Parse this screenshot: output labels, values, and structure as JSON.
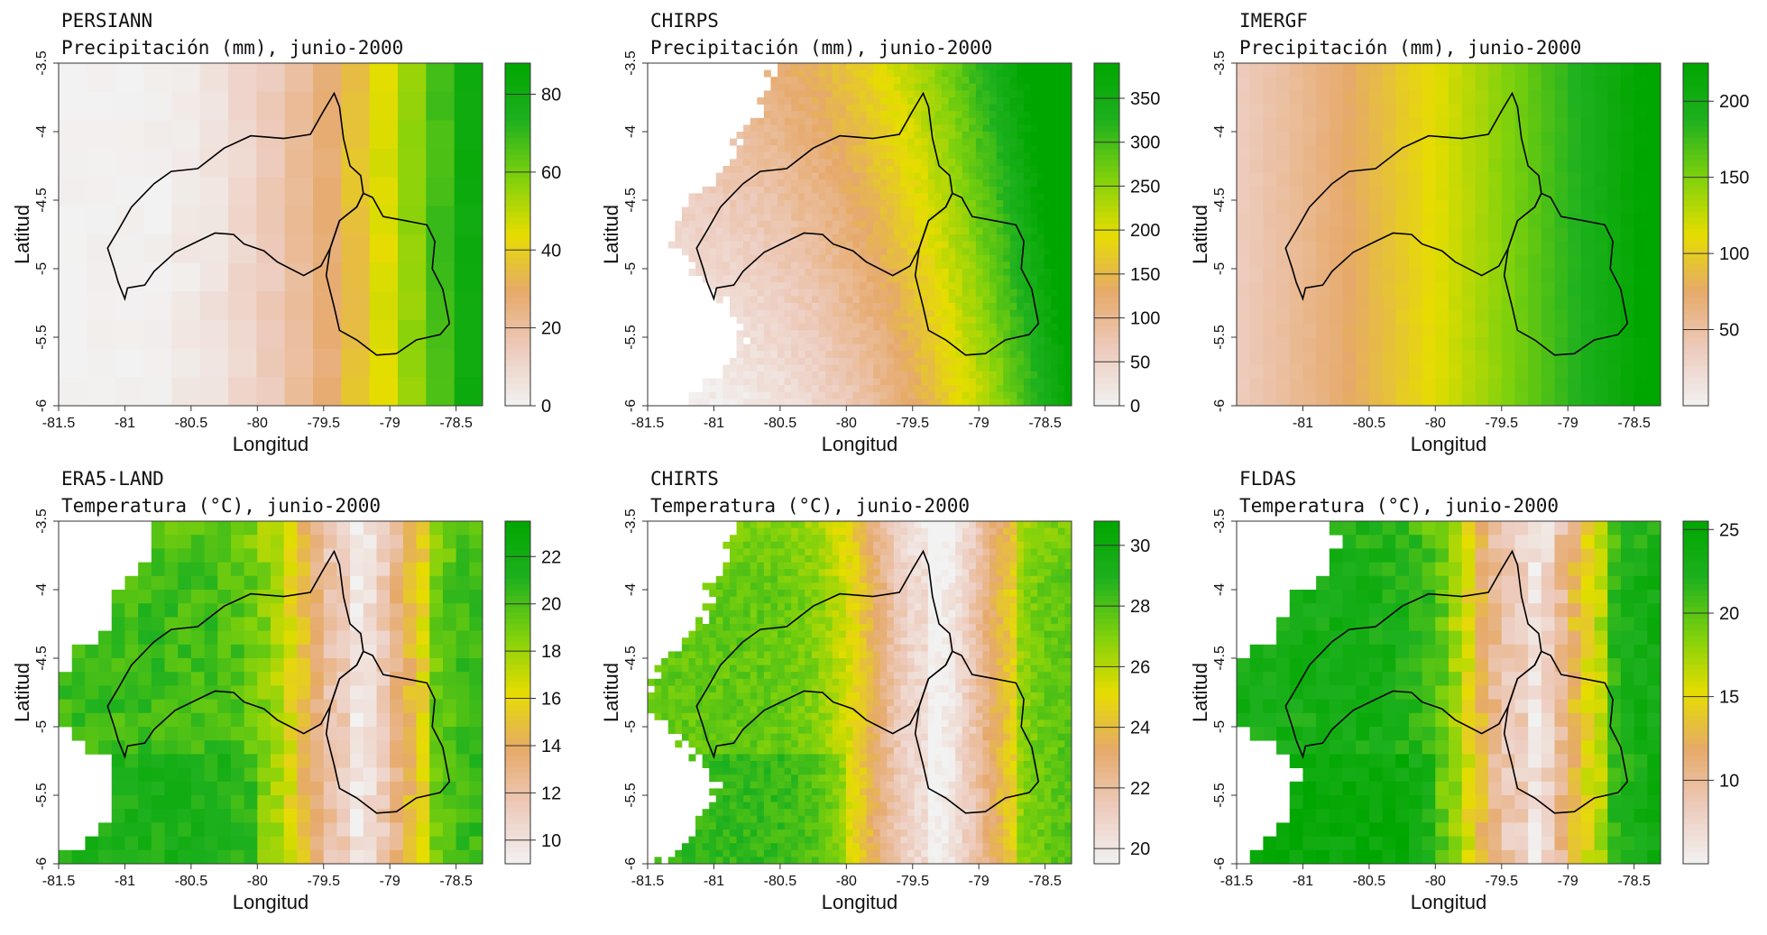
{
  "figure": {
    "colors": {
      "ramp": [
        "#f2f2f2",
        "#edcbbd",
        "#e6a96a",
        "#e6dd00",
        "#7fd10c",
        "#1fb11f",
        "#00a600"
      ],
      "basin_outline": "#000000",
      "no_data": "#ffffff"
    }
  },
  "chart_data": [
    {
      "type": "heatmap",
      "dataset": "PERSIANN",
      "title": "Precipitación (mm), junio-2000",
      "xlabel": "Longitud",
      "ylabel": "Latitud",
      "xlim": [
        -81.5,
        -78.3
      ],
      "ylim": [
        -6.0,
        -3.5
      ],
      "xticks": [
        "-81.5",
        "-81",
        "-80.5",
        "-80",
        "-79.5",
        "-79",
        "-78.5"
      ],
      "yticks": [
        "-3.5",
        "-4",
        "-4.5",
        "-5",
        "-5.5",
        "-6"
      ],
      "colorbar": {
        "min": 0,
        "max": 88,
        "ticks": [
          "0",
          "20",
          "40",
          "60",
          "80"
        ]
      },
      "field": {
        "rows": 12,
        "cols": 15,
        "x_center": -78.3,
        "x_scale": 0.9,
        "x_power": 2.2,
        "y_gradient": 0.0,
        "base": 0.0,
        "max": 88,
        "noise": 0.04,
        "masked": false
      }
    },
    {
      "type": "heatmap",
      "dataset": "CHIRPS",
      "title": "Precipitación (mm), junio-2000",
      "xlabel": "Longitud",
      "ylabel": "Latitud",
      "xlim": [
        -81.5,
        -78.3
      ],
      "ylim": [
        -6.0,
        -3.5
      ],
      "xticks": [
        "-81.5",
        "-81",
        "-80.5",
        "-80",
        "-79.5",
        "-79",
        "-78.5"
      ],
      "yticks": [
        "-3.5",
        "-4",
        "-4.5",
        "-5",
        "-5.5",
        "-6"
      ],
      "colorbar": {
        "min": 0,
        "max": 390,
        "ticks": [
          "0",
          "50",
          "100",
          "150",
          "200",
          "250",
          "300",
          "350"
        ]
      },
      "field": {
        "rows": 50,
        "cols": 62,
        "x_center": -78.3,
        "x_scale": 1.05,
        "x_power": 2.5,
        "y_gradient": 0.1,
        "base": 0.0,
        "max": 390,
        "noise": 0.06,
        "masked": true,
        "mask_west": -81.05,
        "mask_north": -4.0
      }
    },
    {
      "type": "heatmap",
      "dataset": "IMERGF",
      "title": "Precipitación (mm), junio-2000",
      "xlabel": "Longitud",
      "ylabel": "Latitud",
      "xlim": [
        -81.5,
        -78.3
      ],
      "ylim": [
        -6.0,
        -3.5
      ],
      "xticks": [
        "-81",
        "-80.5",
        "-80",
        "-79.5",
        "-79",
        "-78.5"
      ],
      "yticks": [
        "-3.5",
        "-4",
        "-4.5",
        "-5",
        "-5.5",
        "-6"
      ],
      "colorbar": {
        "min": 0,
        "max": 225,
        "ticks": [
          "50",
          "100",
          "150",
          "200"
        ]
      },
      "field": {
        "rows": 25,
        "cols": 32,
        "x_center": -78.3,
        "x_scale": 1.3,
        "x_power": 1.5,
        "y_gradient": 0.0,
        "base": 0.05,
        "max": 225,
        "noise": 0.015,
        "masked": false
      }
    },
    {
      "type": "heatmap",
      "dataset": "ERA5-LAND",
      "title": "Temperatura (°C), junio-2000",
      "xlabel": "Longitud",
      "ylabel": "Latitud",
      "xlim": [
        -81.5,
        -78.3
      ],
      "ylim": [
        -6.0,
        -3.5
      ],
      "xticks": [
        "-81.5",
        "-81",
        "-80.5",
        "-80",
        "-79.5",
        "-79",
        "-78.5"
      ],
      "yticks": [
        "-3.5",
        "-4",
        "-4.5",
        "-5",
        "-5.5",
        "-6"
      ],
      "colorbar": {
        "min": 9,
        "max": 23.5,
        "ticks": [
          "10",
          "12",
          "14",
          "16",
          "18",
          "20",
          "22"
        ]
      },
      "field": {
        "rows": 25,
        "cols": 32,
        "temperature": true,
        "ridge": -79.3,
        "ridge_width": 0.5,
        "base": 0.78,
        "drop": 0.62,
        "noise": 0.12,
        "masked": true,
        "mask_west": -81.3,
        "mask_north": -4.0
      }
    },
    {
      "type": "heatmap",
      "dataset": "CHIRTS",
      "title": "Temperatura (°C), junio-2000",
      "xlabel": "Longitud",
      "ylabel": "Latitud",
      "xlim": [
        -81.5,
        -78.3
      ],
      "ylim": [
        -6.0,
        -3.5
      ],
      "xticks": [
        "-81.5",
        "-81",
        "-80.5",
        "-80",
        "-79.5",
        "-79",
        "-78.5"
      ],
      "yticks": [
        "-3.5",
        "-4",
        "-4.5",
        "-5",
        "-5.5",
        "-6"
      ],
      "colorbar": {
        "min": 19.5,
        "max": 30.8,
        "ticks": [
          "20",
          "22",
          "24",
          "26",
          "28",
          "30"
        ]
      },
      "field": {
        "rows": 50,
        "cols": 62,
        "temperature": true,
        "ridge": -79.4,
        "ridge_width": 0.55,
        "base": 0.72,
        "drop": 0.62,
        "noise": 0.1,
        "masked": true,
        "mask_west": -81.25,
        "mask_north": -3.95
      }
    },
    {
      "type": "heatmap",
      "dataset": "FLDAS",
      "title": "Temperatura (°C), junio-2000",
      "xlabel": "Longitud",
      "ylabel": "Latitud",
      "xlim": [
        -81.5,
        -78.3
      ],
      "ylim": [
        -6.0,
        -3.5
      ],
      "xticks": [
        "-81.5",
        "-81",
        "-80.5",
        "-80",
        "-79.5",
        "-79",
        "-78.5"
      ],
      "yticks": [
        "-3.5",
        "-4",
        "-4.5",
        "-5",
        "-5.5",
        "-6"
      ],
      "colorbar": {
        "min": 5,
        "max": 25.5,
        "ticks": [
          "10",
          "15",
          "20",
          "25"
        ]
      },
      "field": {
        "rows": 25,
        "cols": 32,
        "temperature": true,
        "ridge": -79.35,
        "ridge_width": 0.5,
        "base": 0.88,
        "drop": 0.72,
        "noise": 0.14,
        "masked": true,
        "mask_west": -81.3,
        "mask_north": -4.05
      }
    }
  ],
  "basins": {
    "western": [
      [
        -81.13,
        -4.85
      ],
      [
        -81.05,
        -4.72
      ],
      [
        -80.95,
        -4.55
      ],
      [
        -80.78,
        -4.38
      ],
      [
        -80.65,
        -4.29
      ],
      [
        -80.45,
        -4.27
      ],
      [
        -80.25,
        -4.12
      ],
      [
        -80.05,
        -4.03
      ],
      [
        -79.8,
        -4.05
      ],
      [
        -79.6,
        -4.02
      ],
      [
        -79.5,
        -3.85
      ],
      [
        -79.42,
        -3.72
      ],
      [
        -79.38,
        -3.82
      ],
      [
        -79.35,
        -4.05
      ],
      [
        -79.3,
        -4.25
      ],
      [
        -79.22,
        -4.32
      ],
      [
        -79.2,
        -4.45
      ],
      [
        -79.25,
        -4.55
      ],
      [
        -79.38,
        -4.65
      ],
      [
        -79.45,
        -4.85
      ],
      [
        -79.52,
        -4.98
      ],
      [
        -79.65,
        -5.05
      ],
      [
        -79.85,
        -4.95
      ],
      [
        -79.95,
        -4.87
      ],
      [
        -80.1,
        -4.82
      ],
      [
        -80.18,
        -4.75
      ],
      [
        -80.32,
        -4.74
      ],
      [
        -80.45,
        -4.8
      ],
      [
        -80.62,
        -4.88
      ],
      [
        -80.78,
        -5.02
      ],
      [
        -80.85,
        -5.12
      ],
      [
        -80.98,
        -5.14
      ],
      [
        -81.0,
        -5.22
      ],
      [
        -81.05,
        -5.1
      ],
      [
        -81.08,
        -5.0
      ],
      [
        -81.13,
        -4.85
      ]
    ],
    "eastern": [
      [
        -79.45,
        -4.85
      ],
      [
        -79.38,
        -4.65
      ],
      [
        -79.25,
        -4.55
      ],
      [
        -79.2,
        -4.45
      ],
      [
        -79.13,
        -4.48
      ],
      [
        -79.05,
        -4.62
      ],
      [
        -78.88,
        -4.65
      ],
      [
        -78.72,
        -4.68
      ],
      [
        -78.66,
        -4.8
      ],
      [
        -78.68,
        -5.0
      ],
      [
        -78.6,
        -5.15
      ],
      [
        -78.55,
        -5.4
      ],
      [
        -78.62,
        -5.48
      ],
      [
        -78.8,
        -5.52
      ],
      [
        -78.95,
        -5.62
      ],
      [
        -79.1,
        -5.63
      ],
      [
        -79.25,
        -5.52
      ],
      [
        -79.38,
        -5.45
      ],
      [
        -79.42,
        -5.28
      ],
      [
        -79.48,
        -5.05
      ],
      [
        -79.45,
        -4.85
      ]
    ]
  }
}
